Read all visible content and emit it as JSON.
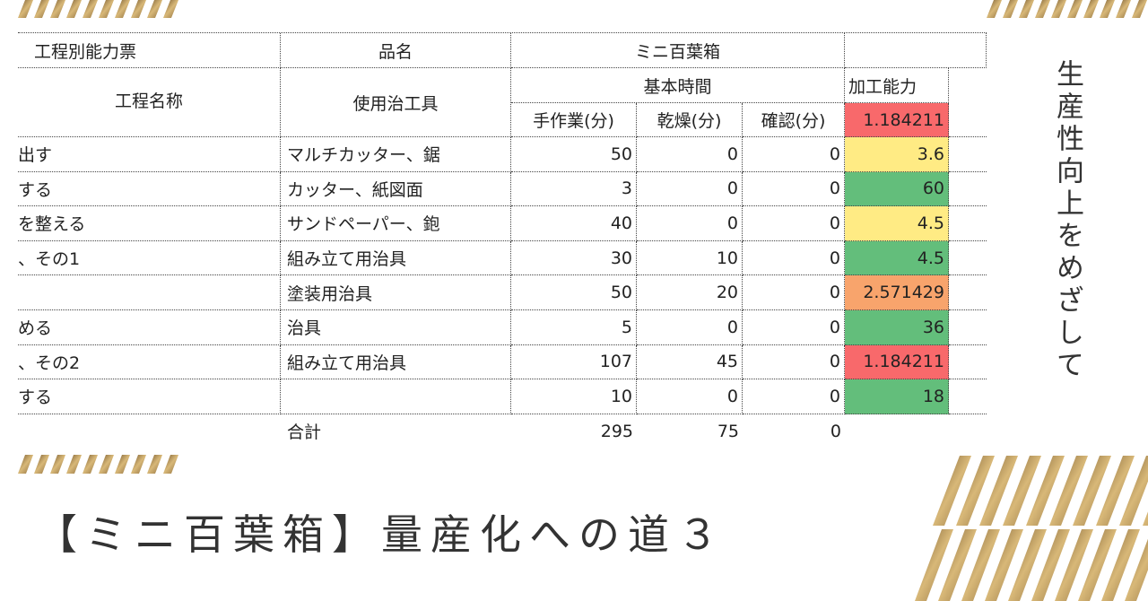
{
  "header": {
    "title": "【ミニ百葉箱】量産化への道３",
    "tagline": "生産性向上をめざして"
  },
  "sheet": {
    "title": "工程別能力票",
    "product_label": "品名",
    "product": "ミニ百葉箱",
    "process_label": "工程名称",
    "tool_label": "使用治工具",
    "time_label": "基本時間",
    "capacity_label": "加工能力",
    "columns": [
      "手作業(分)",
      "乾燥(分)",
      "確認(分)"
    ],
    "capacity_header_value": 1.184211,
    "capacity_header_color": "#f8696b",
    "rows": [
      {
        "process": "出す",
        "tool": "マルチカッター、鋸",
        "manual": 50,
        "dry": 0,
        "check": 0,
        "capacity": 3.6,
        "color": "#ffeb84"
      },
      {
        "process": "する",
        "tool": "カッター、紙図面",
        "manual": 3,
        "dry": 0,
        "check": 0,
        "capacity": 60,
        "color": "#63be7b"
      },
      {
        "process": "を整える",
        "tool": "サンドペーパー、鉋",
        "manual": 40,
        "dry": 0,
        "check": 0,
        "capacity": 4.5,
        "color": "#ffeb84"
      },
      {
        "process": "、その1",
        "tool": "組み立て用治具",
        "manual": 30,
        "dry": 10,
        "check": 0,
        "capacity": 4.5,
        "color": "#63be7b"
      },
      {
        "tool": "塗装用治具",
        "manual": 50,
        "dry": 20,
        "check": 0,
        "capacity": 2.571429,
        "color": "#f8a46c"
      },
      {
        "process": "める",
        "tool": "治具",
        "manual": 5,
        "dry": 0,
        "check": 0,
        "capacity": 36,
        "color": "#63be7b"
      },
      {
        "process": "、その2",
        "tool": "組み立て用治具",
        "manual": 107,
        "dry": 45,
        "check": 0,
        "capacity": 1.184211,
        "color": "#f8696b"
      },
      {
        "process": "する",
        "manual": 10,
        "dry": 0,
        "check": 0,
        "capacity": 18,
        "color": "#63be7b"
      }
    ],
    "total_label": "合計",
    "totals": [
      295,
      75,
      0
    ]
  }
}
